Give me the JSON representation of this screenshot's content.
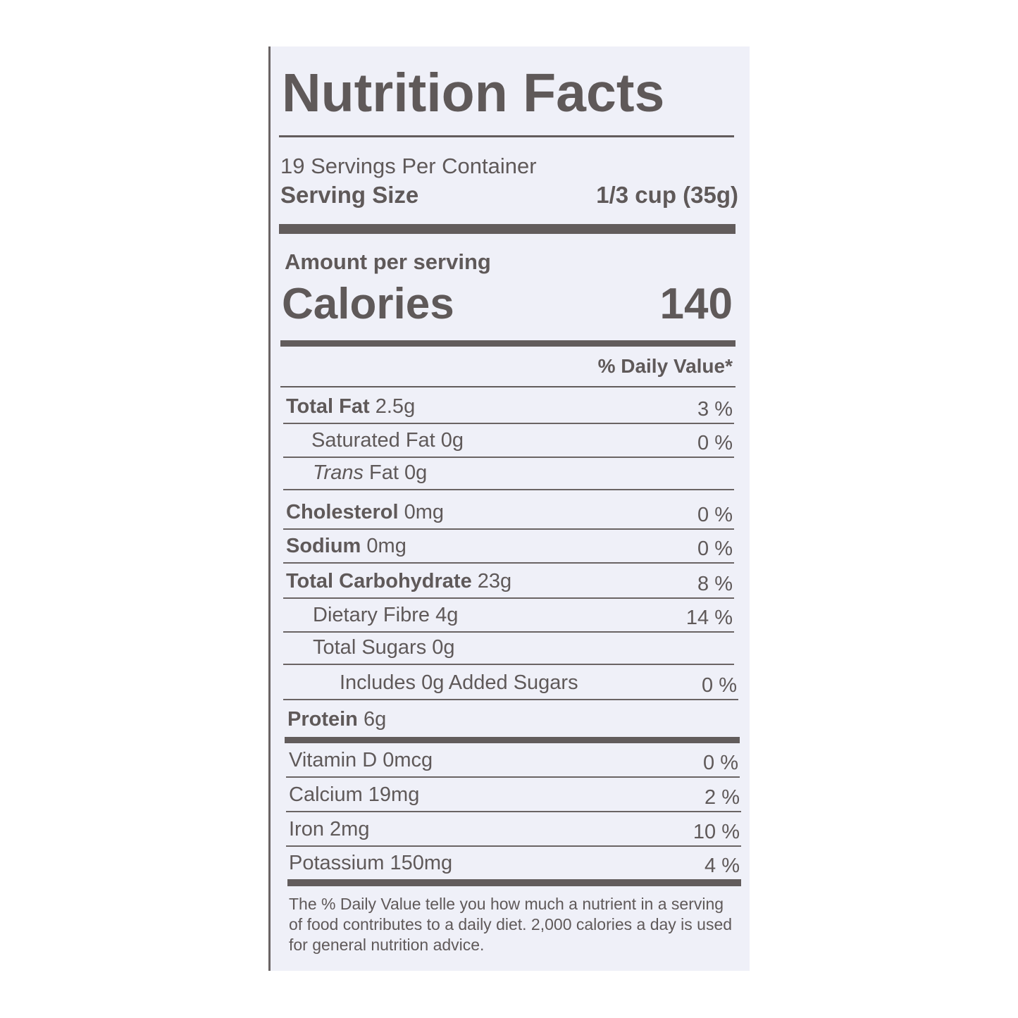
{
  "title": "Nutrition Facts",
  "servings_per_container": "19 Servings Per Container",
  "serving_size_label": "Serving Size",
  "serving_size_value": "1/3 cup (35g)",
  "amount_per_serving": "Amount per serving",
  "calories_label": "Calories",
  "calories_value": "140",
  "daily_value_header": "% Daily Value*",
  "nutrients": [
    {
      "name": "Total Fat",
      "amount": "2.5g",
      "dv": "3 %"
    },
    {
      "name": "Saturated Fat",
      "amount": "0g",
      "dv": "0 %"
    },
    {
      "name": "Trans",
      "name_rest": "Fat 0g",
      "dv": ""
    },
    {
      "name": "Cholesterol",
      "amount": "0mg",
      "dv": "0 %"
    },
    {
      "name": "Sodium",
      "amount": "0mg",
      "dv": "0 %"
    },
    {
      "name": "Total Carbohydrate",
      "amount": "23g",
      "dv": "8 %"
    },
    {
      "name": "Dietary Fibre",
      "amount": "4g",
      "dv": "14 %"
    },
    {
      "name": "Total Sugars",
      "amount": "0g",
      "dv": ""
    },
    {
      "name": "Includes 0g Added Sugars",
      "amount": "",
      "dv": "0 %"
    },
    {
      "name": "Protein",
      "amount": "6g",
      "dv": ""
    }
  ],
  "vitamins": [
    {
      "name": "Vitamin D 0mcg",
      "dv": "0 %"
    },
    {
      "name": "Calcium 19mg",
      "dv": "2 %"
    },
    {
      "name": "Iron 2mg",
      "dv": "10 %"
    },
    {
      "name": "Potassium 150mg",
      "dv": "4 %"
    }
  ],
  "footnote": "The % Daily Value telle you how much a nutrient in a serving of food contributes to a daily diet. 2,000 calories a day is used for general nutrition advice."
}
